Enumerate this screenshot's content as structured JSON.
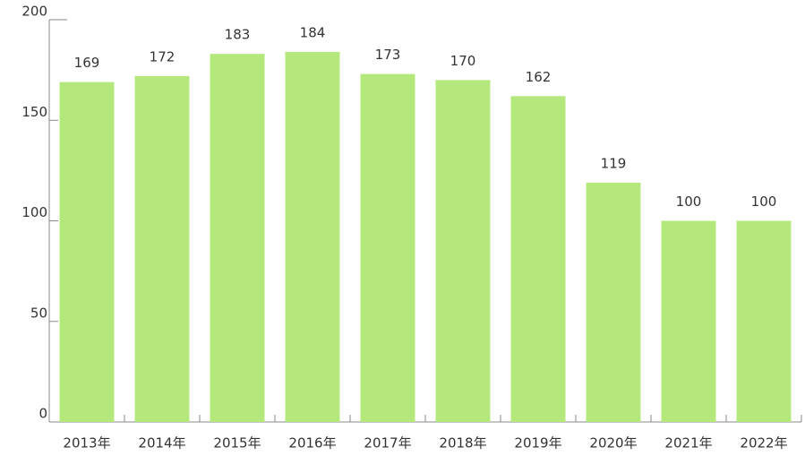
{
  "chart_data": {
    "type": "bar",
    "categories": [
      "2013年",
      "2014年",
      "2015年",
      "2016年",
      "2017年",
      "2018年",
      "2019年",
      "2020年",
      "2021年",
      "2022年"
    ],
    "values": [
      169,
      172,
      183,
      184,
      173,
      170,
      162,
      119,
      100,
      100
    ],
    "color": "#b5e87c",
    "ylim": [
      0,
      200
    ],
    "yticks": [
      0,
      50,
      100,
      150,
      200
    ],
    "grid": false
  }
}
